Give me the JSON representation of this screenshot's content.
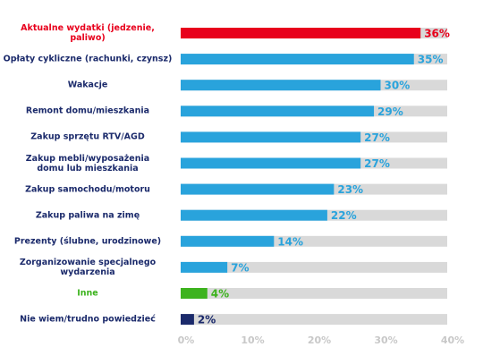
{
  "chart_data": {
    "type": "hbar",
    "categories": [
      "Aktualne wydatki (jedzenie, paliwo)",
      "Opłaty cykliczne (rachunki, czynsz)",
      "Wakacje",
      "Remont domu/mieszkania",
      "Zakup sprzętu RTV/AGD",
      "Zakup mebli/wyposażenia\ndomu lub mieszkania",
      "Zakup samochodu/motoru",
      "Zakup paliwa na zimę",
      "Prezenty (ślubne, urodzinowe)",
      "Zorganizowanie specjalnego\nwydarzenia",
      "Inne",
      "Nie wiem/trudno powiedzieć"
    ],
    "values": [
      36,
      35,
      30,
      29,
      27,
      27,
      23,
      22,
      14,
      7,
      4,
      2
    ],
    "value_labels": [
      "36%",
      "35%",
      "30%",
      "29%",
      "27%",
      "27%",
      "23%",
      "22%",
      "14%",
      "7%",
      "4%",
      "2%"
    ],
    "colors": [
      "#e8001c",
      "#29a3dc",
      "#29a3dc",
      "#29a3dc",
      "#29a3dc",
      "#29a3dc",
      "#29a3dc",
      "#29a3dc",
      "#29a3dc",
      "#29a3dc",
      "#3db31e",
      "#1b2a6b"
    ],
    "category_colors": [
      "#e8001c",
      "#1b2a6b",
      "#1b2a6b",
      "#1b2a6b",
      "#1b2a6b",
      "#1b2a6b",
      "#1b2a6b",
      "#1b2a6b",
      "#1b2a6b",
      "#1b2a6b",
      "#3db31e",
      "#1b2a6b"
    ],
    "track_color": "#d9d9d9",
    "xlim": [
      0,
      40
    ],
    "xticks": [
      {
        "value": 0,
        "label": "0%"
      },
      {
        "value": 10,
        "label": "10%"
      },
      {
        "value": 20,
        "label": "20%"
      },
      {
        "value": 30,
        "label": "30%"
      },
      {
        "value": 40,
        "label": "40%"
      }
    ]
  }
}
